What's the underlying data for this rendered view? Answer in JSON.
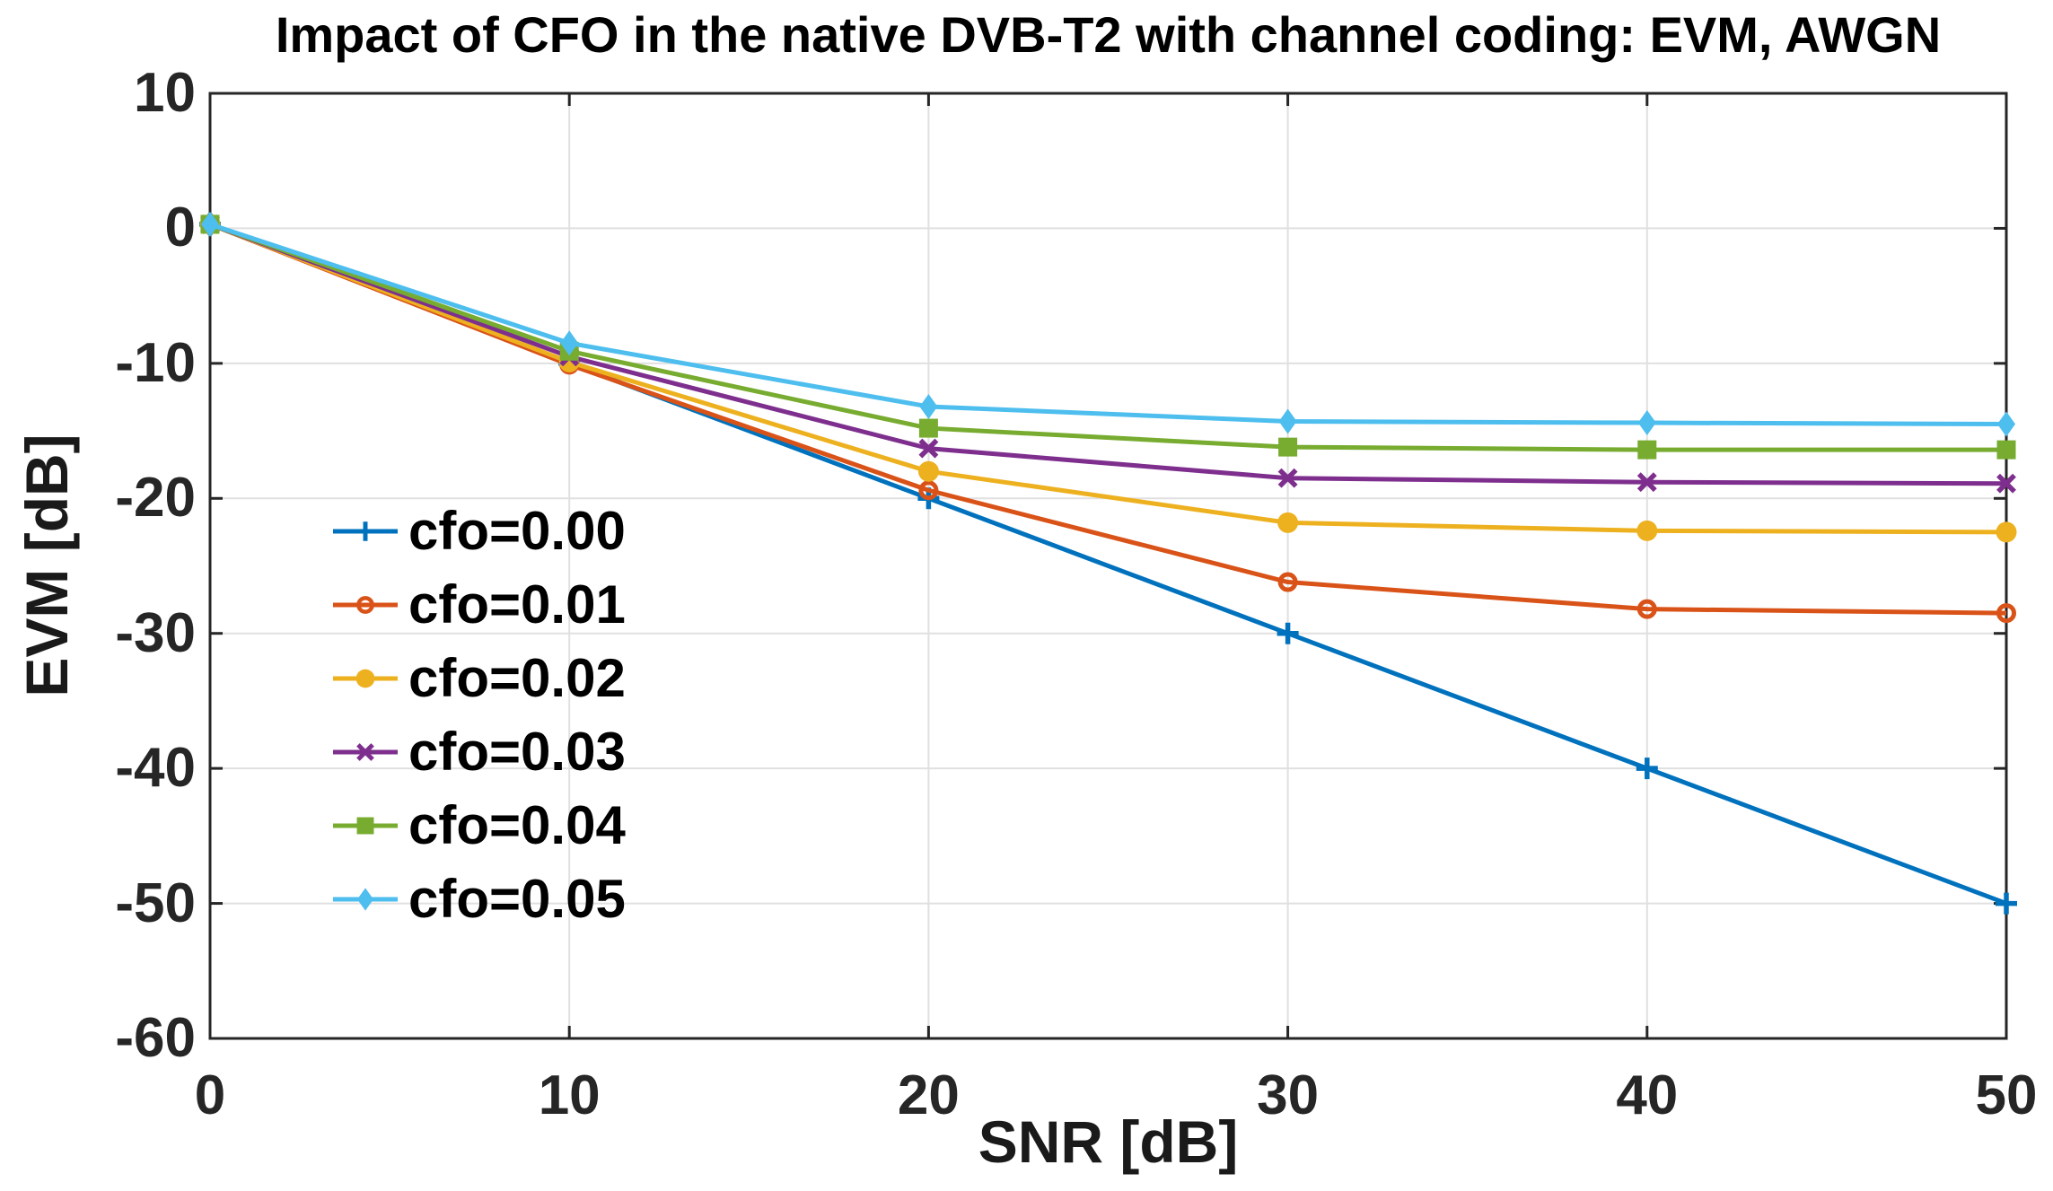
{
  "figure": {
    "background": "#ffffff"
  },
  "chart_data": {
    "type": "line",
    "title": "Impact of CFO in the native DVB-T2 with channel coding: EVM, AWGN",
    "xlabel": "SNR [dB]",
    "ylabel": "EVM [dB]",
    "x": [
      0,
      10,
      20,
      30,
      40,
      50
    ],
    "xlim": [
      0,
      50
    ],
    "ylim": [
      -60,
      10
    ],
    "x_ticks": [
      0,
      10,
      20,
      30,
      40,
      50
    ],
    "y_ticks": [
      10,
      0,
      -10,
      -20,
      -30,
      -40,
      -50,
      -60
    ],
    "grid": true,
    "legend_position": "inside-middle-left",
    "series": [
      {
        "name": "cfo=0.00",
        "color": "#0072BD",
        "marker": "plus",
        "values": [
          0.3,
          -10.0,
          -20.0,
          -30.0,
          -40.0,
          -50.0
        ]
      },
      {
        "name": "cfo=0.01",
        "color": "#D95319",
        "marker": "circle-open",
        "values": [
          0.3,
          -10.1,
          -19.4,
          -26.2,
          -28.2,
          -28.5
        ]
      },
      {
        "name": "cfo=0.02",
        "color": "#EDB120",
        "marker": "circle-filled",
        "values": [
          0.3,
          -9.9,
          -18.0,
          -21.8,
          -22.4,
          -22.5
        ]
      },
      {
        "name": "cfo=0.03",
        "color": "#7E2F8E",
        "marker": "x",
        "values": [
          0.3,
          -9.5,
          -16.3,
          -18.5,
          -18.8,
          -18.9
        ]
      },
      {
        "name": "cfo=0.04",
        "color": "#77AC30",
        "marker": "square",
        "values": [
          0.3,
          -9.1,
          -14.8,
          -16.2,
          -16.4,
          -16.4
        ]
      },
      {
        "name": "cfo=0.05",
        "color": "#4DBEEE",
        "marker": "diamond",
        "values": [
          0.3,
          -8.5,
          -13.2,
          -14.3,
          -14.4,
          -14.5
        ]
      }
    ],
    "axis_color": "#262626",
    "grid_color": "#e0e0e0",
    "tick_label_color": "#262626",
    "text_color": "#000000"
  }
}
